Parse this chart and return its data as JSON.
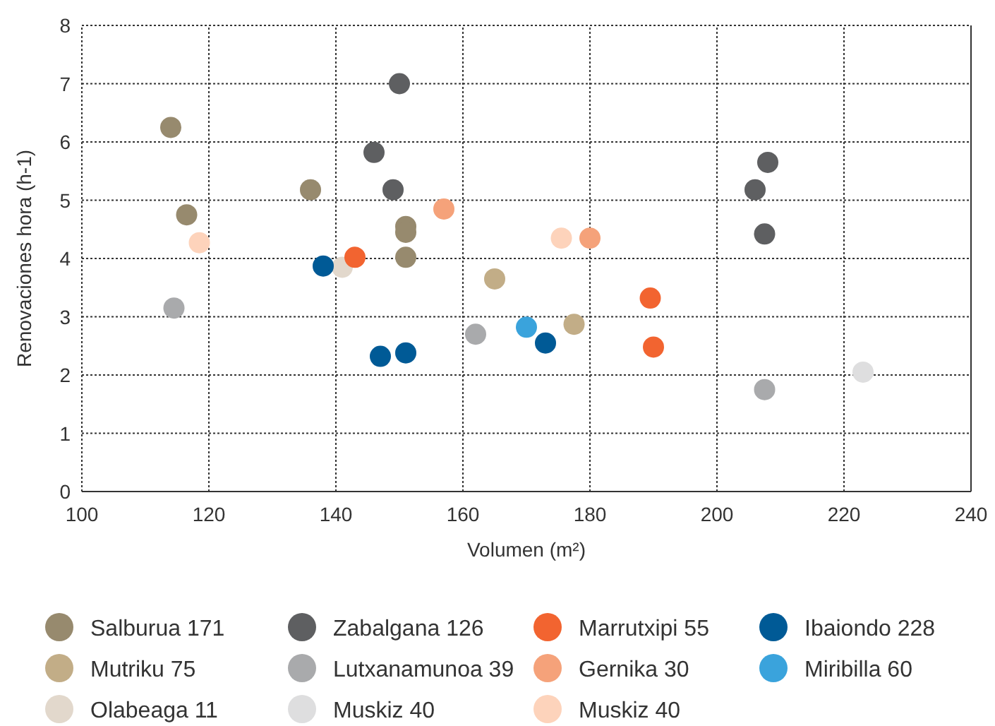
{
  "chart_data": {
    "type": "scatter",
    "xlabel": "Volumen (m²)",
    "ylabel": "Renovaciones hora (h-1)",
    "xlim": [
      100,
      240
    ],
    "xticks": [
      100,
      120,
      140,
      160,
      180,
      200,
      220,
      240
    ],
    "ylim": [
      0,
      8
    ],
    "yticks": [
      0,
      1,
      2,
      3,
      4,
      5,
      6,
      7,
      8
    ],
    "grid": true,
    "legend": "bottom",
    "marker": "circle",
    "series": [
      {
        "name": "Salburua 171",
        "color": "#978a6e",
        "x": [
          114,
          116.5,
          136,
          151,
          151,
          151
        ],
        "values": [
          6.25,
          4.75,
          5.18,
          4.55,
          4.45,
          4.02
        ]
      },
      {
        "name": "Mutriku 75",
        "color": "#c2ad87",
        "x": [
          165,
          177.5
        ],
        "values": [
          3.65,
          2.87
        ]
      },
      {
        "name": "Olabeaga 11",
        "color": "#e2d8cc",
        "x": [
          141
        ],
        "values": [
          3.85
        ]
      },
      {
        "name": "Zabalgana 126",
        "color": "#5e5f61",
        "x": [
          150,
          146,
          149,
          206,
          208,
          207.5
        ],
        "values": [
          7,
          5.82,
          5.18,
          5.18,
          5.65,
          4.42
        ]
      },
      {
        "name": "Lutxanamunoa 39",
        "color": "#a9aaac",
        "x": [
          114.5,
          162,
          207.5
        ],
        "values": [
          3.15,
          2.7,
          1.75
        ]
      },
      {
        "name": "Muskiz 40",
        "color": "#dededf",
        "x": [
          223
        ],
        "values": [
          2.05
        ]
      },
      {
        "name": "Marrutxipi 55",
        "color": "#f26430",
        "x": [
          143,
          189.5,
          190
        ],
        "values": [
          4.02,
          3.32,
          2.48
        ]
      },
      {
        "name": "Gernika 30",
        "color": "#f5a27a",
        "x": [
          157,
          180
        ],
        "values": [
          4.85,
          4.35
        ]
      },
      {
        "name": "Muskiz 40",
        "color": "#fdd3bb",
        "x": [
          118.5,
          175.5
        ],
        "values": [
          4.27,
          4.35
        ]
      },
      {
        "name": "Ibaiondo 228",
        "color": "#005a96",
        "x": [
          138,
          147,
          151,
          173
        ],
        "values": [
          3.87,
          2.32,
          2.38,
          2.55
        ]
      },
      {
        "name": "Miribilla 60",
        "color": "#3aa3dc",
        "x": [
          170
        ],
        "values": [
          2.82
        ]
      }
    ]
  }
}
